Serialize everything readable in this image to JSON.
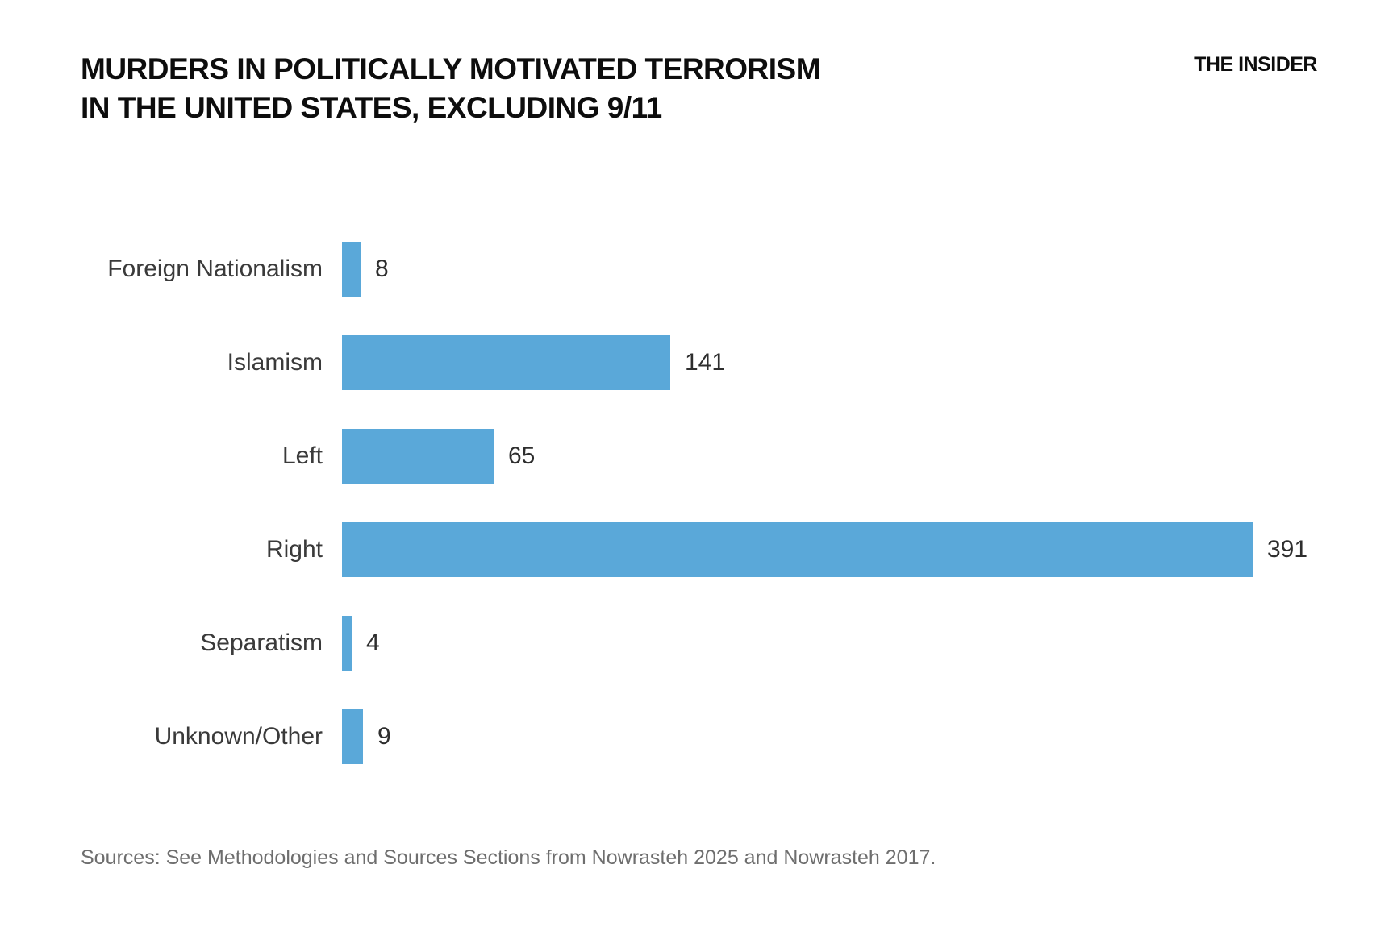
{
  "page": {
    "background": "#ffffff"
  },
  "header": {
    "title_line1": "MURDERS IN POLITICALLY MOTIVATED TERRORISM",
    "title_line2": "IN THE UNITED STATES, EXCLUDING 9/11",
    "brand": "THE INSIDER"
  },
  "chart_data": {
    "type": "bar",
    "orientation": "horizontal",
    "title": "MURDERS IN POLITICALLY MOTIVATED TERRORISM IN THE UNITED STATES, EXCLUDING 9/11",
    "categories": [
      "Foreign Nationalism",
      "Islamism",
      "Left",
      "Right",
      "Separatism",
      "Unknown/Other"
    ],
    "values": [
      8,
      141,
      65,
      391,
      4,
      9
    ],
    "value_labels_shown": true,
    "xlabel": "",
    "ylabel": "",
    "xlim": [
      0,
      391
    ],
    "grid": false,
    "legend": false,
    "bar_color": "#5AA8D9"
  },
  "footer": {
    "sources": "Sources: See Methodologies and Sources Sections from Nowrasteh 2025 and Nowrasteh 2017."
  }
}
